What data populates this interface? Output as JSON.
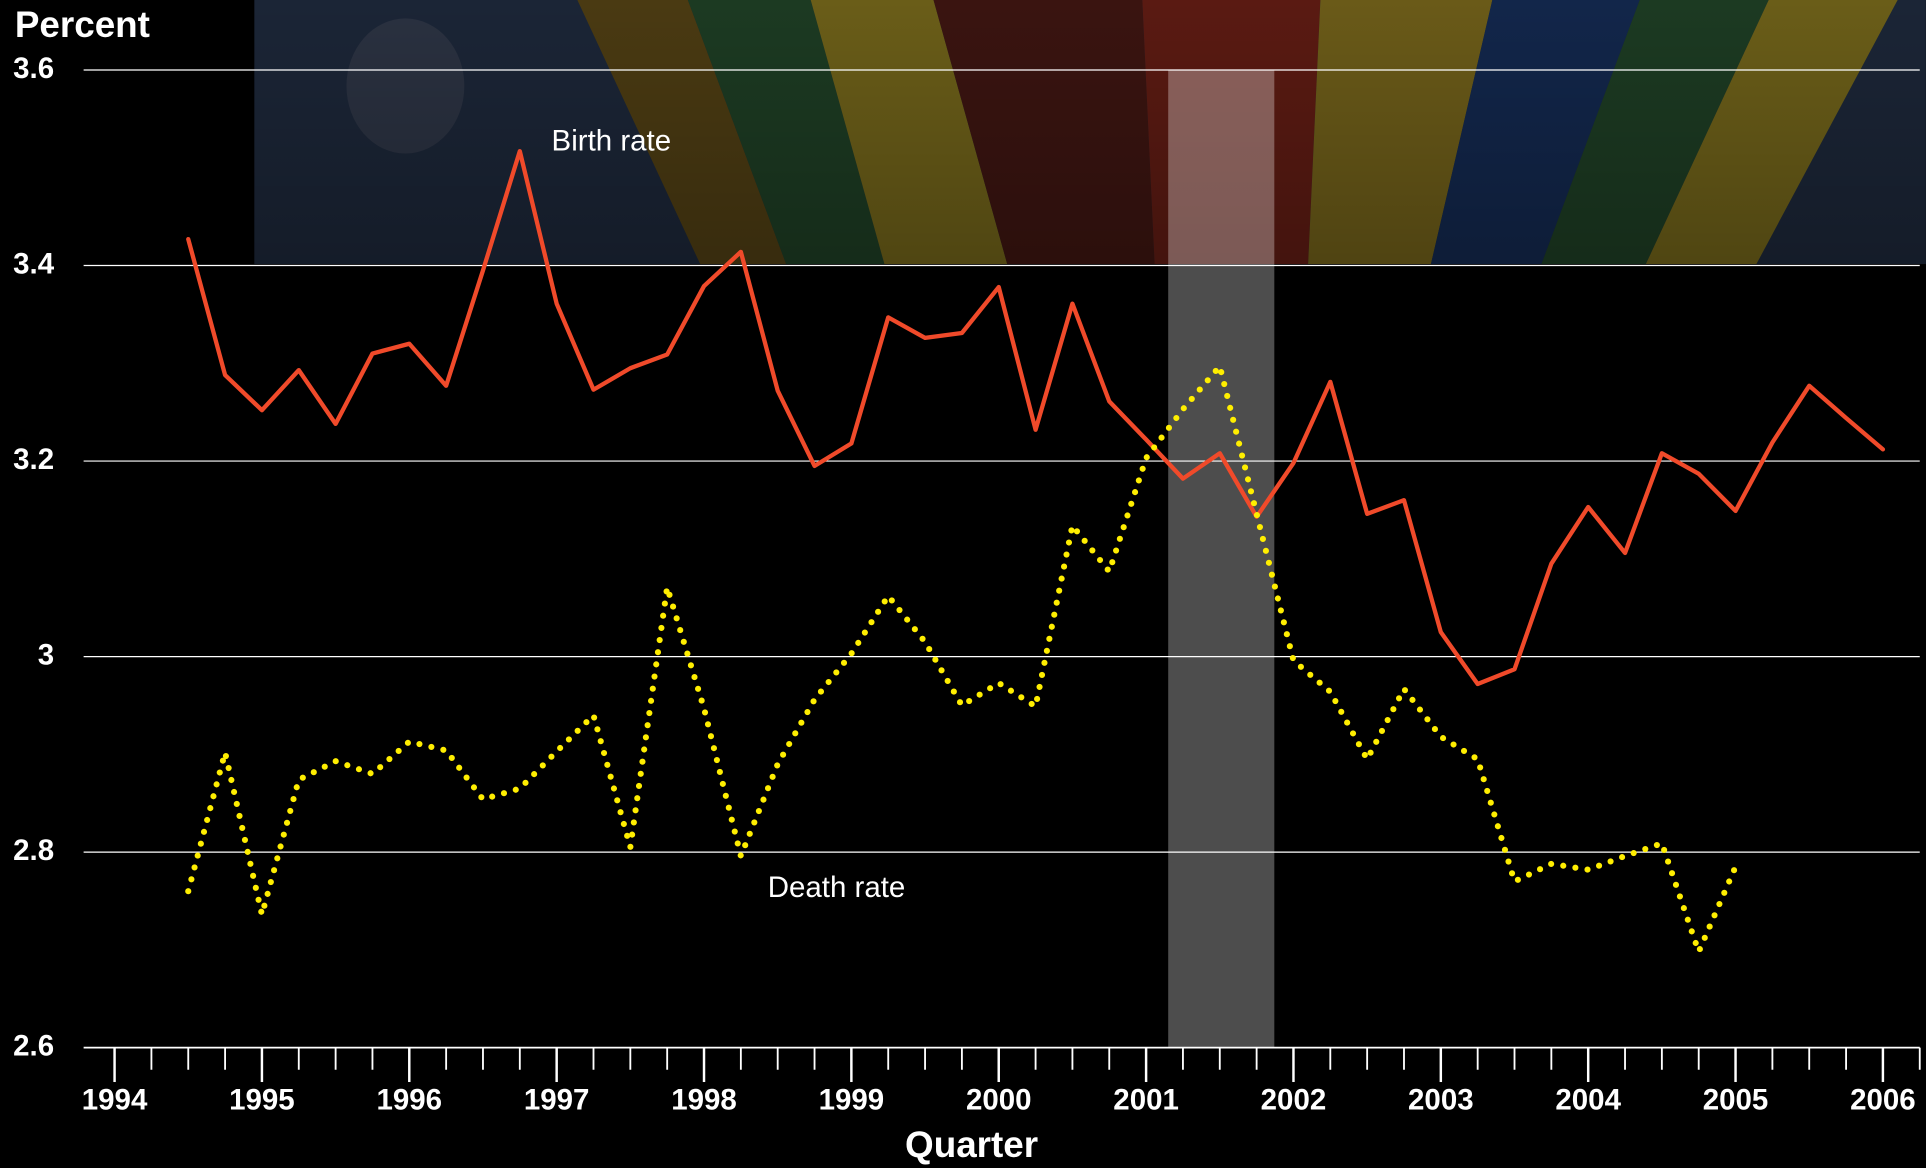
{
  "chart_data": {
    "type": "line",
    "title": "Percent",
    "x_label": "Quarter",
    "x": [
      1994.5,
      1994.75,
      1995,
      1995.25,
      1995.5,
      1995.75,
      1996,
      1996.25,
      1996.5,
      1996.75,
      1997,
      1997.25,
      1997.5,
      1997.75,
      1998,
      1998.25,
      1998.5,
      1998.75,
      1999,
      1999.25,
      1999.5,
      1999.75,
      2000,
      2000.25,
      2000.5,
      2000.75,
      2001,
      2001.25,
      2001.5,
      2001.75,
      2002,
      2002.25,
      2002.5,
      2002.75,
      2003,
      2003.25,
      2003.5,
      2003.75,
      2004,
      2004.25,
      2004.5,
      2004.75,
      2005,
      2005.25,
      2005.5,
      2005.75,
      2006
    ],
    "series": [
      {
        "name": "Birth rate",
        "color": "#f04a2a",
        "style": "solid",
        "values": [
          3.427,
          3.288,
          3.252,
          3.293,
          3.238,
          3.31,
          3.32,
          3.277,
          3.395,
          3.517,
          3.361,
          3.273,
          3.295,
          3.309,
          3.379,
          3.414,
          3.272,
          3.195,
          3.218,
          3.347,
          3.326,
          3.331,
          3.378,
          3.232,
          3.361,
          3.261,
          3.222,
          3.182,
          3.208,
          3.143,
          3.198,
          3.281,
          3.146,
          3.16,
          3.025,
          2.972,
          2.987,
          3.095,
          3.153,
          3.106,
          3.208,
          3.187,
          3.149,
          3.219,
          3.277,
          3.244,
          3.212
        ]
      },
      {
        "name": "Death rate",
        "color": "#ffee00",
        "style": "dotted",
        "values": [
          2.76,
          2.902,
          2.736,
          2.874,
          2.893,
          2.88,
          2.913,
          2.904,
          2.854,
          2.865,
          2.903,
          2.94,
          2.805,
          3.071,
          2.947,
          2.796,
          2.89,
          2.956,
          3.003,
          3.062,
          3.015,
          2.95,
          2.973,
          2.949,
          3.134,
          3.087,
          3.203,
          3.253,
          3.297,
          3.146,
          2.996,
          2.964,
          2.895,
          2.967,
          2.918,
          2.895,
          2.77,
          2.788,
          2.782,
          2.796,
          2.809,
          2.698,
          2.785,
          null,
          null,
          null,
          null
        ]
      }
    ],
    "xlim": [
      1993.79,
      2006.25
    ],
    "xticks": [
      1994,
      1995,
      1996,
      1997,
      1998,
      1999,
      2000,
      2001,
      2002,
      2003,
      2004,
      2005,
      2006
    ],
    "xminor": 0.25,
    "ylim": [
      2.6,
      3.6
    ],
    "yticks": [
      2.6,
      2.8,
      3,
      3.2,
      3.4,
      3.6
    ],
    "grid": true,
    "shaded_region": [
      2001.15,
      2001.87
    ]
  }
}
